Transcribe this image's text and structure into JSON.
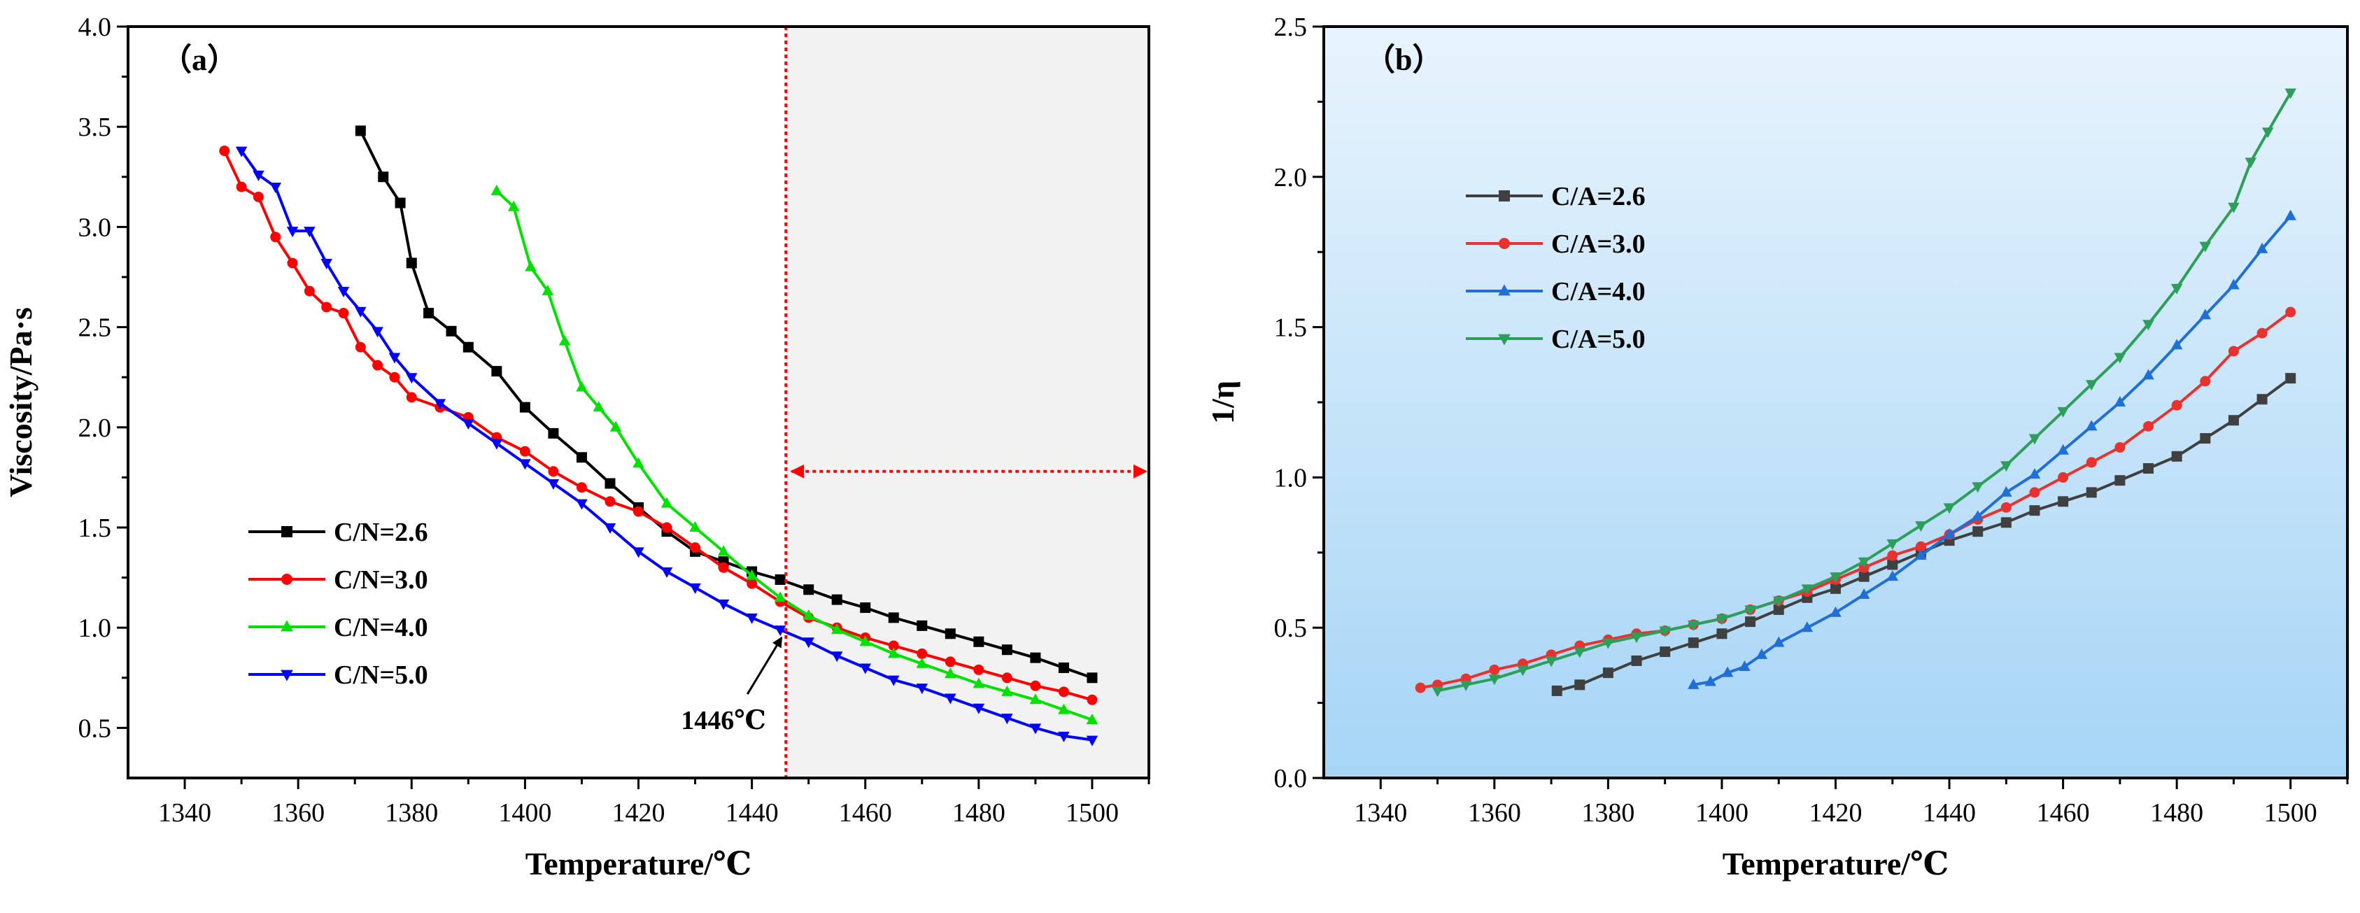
{
  "chart_data": [
    {
      "type": "line",
      "panel_label": "（a）",
      "xlabel": "Temperature/℃",
      "ylabel": "Viscosity/Pa·s",
      "xlim": [
        1330,
        1510
      ],
      "ylim": [
        0.25,
        4.0
      ],
      "xticks": [
        1340,
        1360,
        1380,
        1400,
        1420,
        1440,
        1460,
        1480,
        1500
      ],
      "yticks": [
        0.5,
        1.0,
        1.5,
        2.0,
        2.5,
        3.0,
        3.5,
        4.0
      ],
      "xtick_labels": [
        "1340",
        "1360",
        "1380",
        "1400",
        "1420",
        "1440",
        "1460",
        "1480",
        "1500"
      ],
      "ytick_labels": [
        "0.5",
        "1.0",
        "1.5",
        "2.0",
        "2.5",
        "3.0",
        "3.5",
        "4.0"
      ],
      "shaded_region": [
        1446,
        1510
      ],
      "vline_x": 1446,
      "arrow_y": 1.78,
      "annotation": {
        "text": "1446℃",
        "x": 1446,
        "y": 1.0
      },
      "legend_location": "center-left",
      "series": [
        {
          "name": "C/N=2.6",
          "color": "#000000",
          "marker": "square",
          "x": [
            1371,
            1375,
            1378,
            1380,
            1383,
            1387,
            1390,
            1395,
            1400,
            1405,
            1410,
            1415,
            1420,
            1425,
            1430,
            1435,
            1440,
            1445,
            1450,
            1455,
            1460,
            1465,
            1470,
            1475,
            1480,
            1485,
            1490,
            1495,
            1500
          ],
          "y": [
            3.48,
            3.25,
            3.12,
            2.82,
            2.57,
            2.48,
            2.4,
            2.28,
            2.1,
            1.97,
            1.85,
            1.72,
            1.6,
            1.48,
            1.38,
            1.33,
            1.28,
            1.24,
            1.19,
            1.14,
            1.1,
            1.05,
            1.01,
            0.97,
            0.93,
            0.89,
            0.85,
            0.8,
            0.75
          ]
        },
        {
          "name": "C/N=3.0",
          "color": "#ff0000",
          "marker": "circle",
          "x": [
            1347,
            1350,
            1353,
            1356,
            1359,
            1362,
            1365,
            1368,
            1371,
            1374,
            1377,
            1380,
            1385,
            1390,
            1395,
            1400,
            1405,
            1410,
            1415,
            1420,
            1425,
            1430,
            1435,
            1440,
            1445,
            1450,
            1455,
            1460,
            1465,
            1470,
            1475,
            1480,
            1485,
            1490,
            1495,
            1500
          ],
          "y": [
            3.38,
            3.2,
            3.15,
            2.95,
            2.82,
            2.68,
            2.6,
            2.57,
            2.4,
            2.31,
            2.25,
            2.15,
            2.1,
            2.05,
            1.95,
            1.88,
            1.78,
            1.7,
            1.63,
            1.58,
            1.5,
            1.4,
            1.3,
            1.22,
            1.13,
            1.05,
            1.0,
            0.95,
            0.91,
            0.87,
            0.83,
            0.79,
            0.75,
            0.71,
            0.68,
            0.64
          ]
        },
        {
          "name": "C/N=4.0",
          "color": "#00e000",
          "marker": "triangle-up",
          "x": [
            1395,
            1398,
            1401,
            1404,
            1407,
            1410,
            1413,
            1416,
            1420,
            1425,
            1430,
            1435,
            1440,
            1445,
            1450,
            1455,
            1460,
            1465,
            1470,
            1475,
            1480,
            1485,
            1490,
            1495,
            1500
          ],
          "y": [
            3.18,
            3.1,
            2.8,
            2.68,
            2.43,
            2.2,
            2.1,
            2.0,
            1.82,
            1.62,
            1.5,
            1.38,
            1.26,
            1.15,
            1.06,
            0.99,
            0.93,
            0.87,
            0.82,
            0.77,
            0.72,
            0.68,
            0.64,
            0.59,
            0.54
          ]
        },
        {
          "name": "C/N=5.0",
          "color": "#0000ff",
          "marker": "triangle-down",
          "x": [
            1350,
            1353,
            1356,
            1359,
            1362,
            1365,
            1368,
            1371,
            1374,
            1377,
            1380,
            1385,
            1390,
            1395,
            1400,
            1405,
            1410,
            1415,
            1420,
            1425,
            1430,
            1435,
            1440,
            1445,
            1450,
            1455,
            1460,
            1465,
            1470,
            1475,
            1480,
            1485,
            1490,
            1495,
            1500
          ],
          "y": [
            3.38,
            3.26,
            3.2,
            2.98,
            2.98,
            2.82,
            2.68,
            2.58,
            2.48,
            2.35,
            2.25,
            2.12,
            2.02,
            1.92,
            1.82,
            1.72,
            1.62,
            1.5,
            1.38,
            1.28,
            1.2,
            1.12,
            1.05,
            0.99,
            0.93,
            0.86,
            0.8,
            0.74,
            0.7,
            0.65,
            0.6,
            0.55,
            0.5,
            0.46,
            0.44
          ]
        }
      ]
    },
    {
      "type": "line",
      "panel_label": "（b）",
      "xlabel": "Temperature/℃",
      "ylabel": "1/η",
      "xlim": [
        1330,
        1510
      ],
      "ylim": [
        0.0,
        2.5
      ],
      "xticks": [
        1340,
        1360,
        1380,
        1400,
        1420,
        1440,
        1460,
        1480,
        1500
      ],
      "yticks": [
        0.0,
        0.5,
        1.0,
        1.5,
        2.0,
        2.5
      ],
      "xtick_labels": [
        "1340",
        "1360",
        "1380",
        "1400",
        "1420",
        "1440",
        "1460",
        "1480",
        "1500"
      ],
      "ytick_labels": [
        "0.0",
        "0.5",
        "1.0",
        "1.5",
        "2.0",
        "2.5"
      ],
      "legend_location": "top-left",
      "series": [
        {
          "name": "C/A=2.6",
          "color": "#404040",
          "marker": "square",
          "x": [
            1371,
            1375,
            1380,
            1385,
            1390,
            1395,
            1400,
            1405,
            1410,
            1415,
            1420,
            1425,
            1430,
            1435,
            1440,
            1445,
            1450,
            1455,
            1460,
            1465,
            1470,
            1475,
            1480,
            1485,
            1490,
            1495,
            1500
          ],
          "y": [
            0.29,
            0.31,
            0.35,
            0.39,
            0.42,
            0.45,
            0.48,
            0.52,
            0.56,
            0.6,
            0.63,
            0.67,
            0.71,
            0.75,
            0.79,
            0.82,
            0.85,
            0.89,
            0.92,
            0.95,
            0.99,
            1.03,
            1.07,
            1.13,
            1.19,
            1.26,
            1.33
          ]
        },
        {
          "name": "C/A=3.0",
          "color": "#e8322f",
          "marker": "circle",
          "x": [
            1347,
            1350,
            1355,
            1360,
            1365,
            1370,
            1375,
            1380,
            1385,
            1390,
            1395,
            1400,
            1405,
            1410,
            1415,
            1420,
            1425,
            1430,
            1435,
            1440,
            1445,
            1450,
            1455,
            1460,
            1465,
            1470,
            1475,
            1480,
            1485,
            1490,
            1495,
            1500
          ],
          "y": [
            0.3,
            0.31,
            0.33,
            0.36,
            0.38,
            0.41,
            0.44,
            0.46,
            0.48,
            0.49,
            0.51,
            0.53,
            0.56,
            0.59,
            0.62,
            0.66,
            0.7,
            0.74,
            0.77,
            0.81,
            0.86,
            0.9,
            0.95,
            1.0,
            1.05,
            1.1,
            1.17,
            1.24,
            1.32,
            1.42,
            1.48,
            1.55
          ]
        },
        {
          "name": "C/A=4.0",
          "color": "#1f6fd6",
          "marker": "triangle-up",
          "x": [
            1395,
            1398,
            1401,
            1404,
            1407,
            1410,
            1415,
            1420,
            1425,
            1430,
            1435,
            1440,
            1445,
            1450,
            1455,
            1460,
            1465,
            1470,
            1475,
            1480,
            1485,
            1490,
            1495,
            1500
          ],
          "y": [
            0.31,
            0.32,
            0.35,
            0.37,
            0.41,
            0.45,
            0.5,
            0.55,
            0.61,
            0.67,
            0.74,
            0.81,
            0.87,
            0.95,
            1.01,
            1.09,
            1.17,
            1.25,
            1.34,
            1.44,
            1.54,
            1.64,
            1.76,
            1.87
          ]
        },
        {
          "name": "C/A=5.0",
          "color": "#2e9e5b",
          "marker": "triangle-down",
          "x": [
            1350,
            1355,
            1360,
            1365,
            1370,
            1375,
            1380,
            1385,
            1390,
            1395,
            1400,
            1405,
            1410,
            1415,
            1420,
            1425,
            1430,
            1435,
            1440,
            1445,
            1450,
            1455,
            1460,
            1465,
            1470,
            1475,
            1480,
            1485,
            1490,
            1493,
            1496,
            1500
          ],
          "y": [
            0.29,
            0.31,
            0.33,
            0.36,
            0.39,
            0.42,
            0.45,
            0.47,
            0.49,
            0.51,
            0.53,
            0.56,
            0.59,
            0.63,
            0.67,
            0.72,
            0.78,
            0.84,
            0.9,
            0.97,
            1.04,
            1.13,
            1.22,
            1.31,
            1.4,
            1.51,
            1.63,
            1.77,
            1.9,
            2.05,
            2.15,
            2.28
          ]
        }
      ]
    }
  ]
}
